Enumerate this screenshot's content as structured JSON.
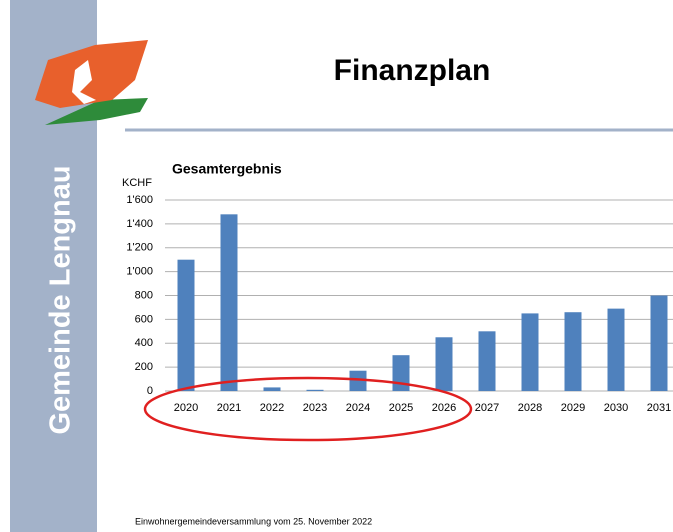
{
  "sidebar": "Gemeinde Lengnau",
  "title": "Finanzplan",
  "footer": "Einwohnergemeindeversammlung vom 25. November 2022",
  "chart_data": {
    "type": "bar",
    "title": "Gesamtergebnis",
    "ylabel": "KCHF",
    "categories": [
      "2020",
      "2021",
      "2022",
      "2023",
      "2024",
      "2025",
      "2026",
      "2027",
      "2028",
      "2029",
      "2030",
      "2031"
    ],
    "values": [
      1100,
      1480,
      30,
      10,
      170,
      300,
      450,
      500,
      650,
      660,
      690,
      800
    ],
    "color": "#4f81bd",
    "ylim": [
      0,
      1600
    ],
    "yticks": [
      0,
      200,
      400,
      600,
      800,
      {
        "value": 1000,
        "label": "1'000"
      },
      {
        "value": 1200,
        "label": "1'200"
      },
      {
        "value": 1400,
        "label": "1'400"
      },
      {
        "value": 1600,
        "label": "1'600"
      }
    ],
    "grid": true
  }
}
